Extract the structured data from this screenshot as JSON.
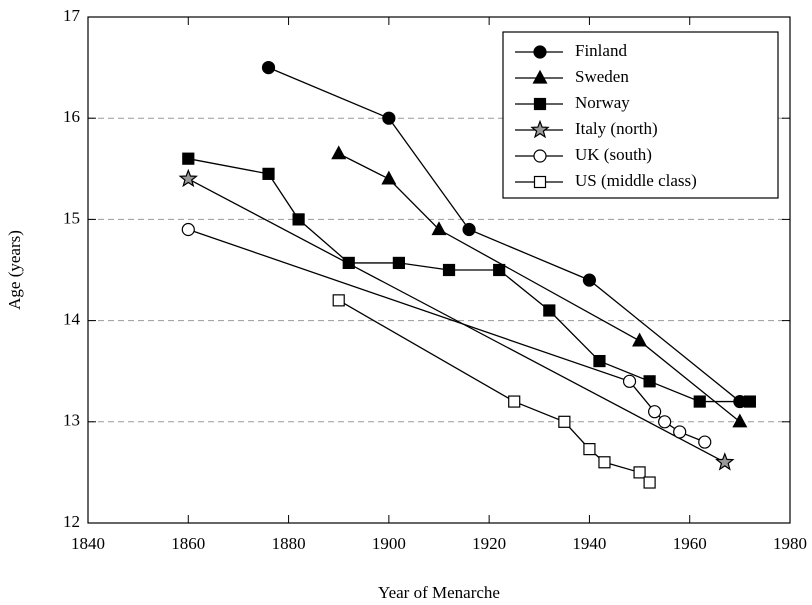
{
  "chart_data": {
    "type": "line",
    "xlabel": "Year of Menarche",
    "ylabel": "Age (years)",
    "xlim": [
      1840,
      1980
    ],
    "xticks": [
      1840,
      1860,
      1880,
      1900,
      1920,
      1940,
      1960,
      1980
    ],
    "ylim": [
      12,
      17
    ],
    "yticks": [
      12,
      13,
      14,
      15,
      16,
      17
    ],
    "grid": true,
    "legend": "upper right",
    "series": [
      {
        "name": "Finland",
        "marker": "circle",
        "color": "#000000",
        "x": [
          1876,
          1900,
          1916,
          1940,
          1970
        ],
        "values": [
          16.5,
          16.0,
          14.9,
          14.4,
          13.2
        ]
      },
      {
        "name": "Sweden",
        "marker": "triangle",
        "color": "#000000",
        "x": [
          1890,
          1900,
          1910,
          1950,
          1970
        ],
        "values": [
          15.65,
          15.4,
          14.9,
          13.8,
          13.0
        ]
      },
      {
        "name": "Norway",
        "marker": "square",
        "color": "#000000",
        "x": [
          1860,
          1876,
          1882,
          1892,
          1902,
          1912,
          1922,
          1932,
          1942,
          1952,
          1962,
          1972
        ],
        "values": [
          15.6,
          15.45,
          15.0,
          14.57,
          14.57,
          14.5,
          14.5,
          14.1,
          13.6,
          13.4,
          13.2,
          13.2
        ]
      },
      {
        "name": "Italy (north)",
        "marker": "star",
        "color": "#999999",
        "x": [
          1860,
          1967
        ],
        "values": [
          15.4,
          12.6
        ]
      },
      {
        "name": "UK (south)",
        "marker": "circle",
        "color": "#ffffff",
        "x": [
          1860,
          1948,
          1953,
          1955,
          1958,
          1963
        ],
        "values": [
          14.9,
          13.4,
          13.1,
          13.0,
          12.9,
          12.8
        ]
      },
      {
        "name": "US (middle class)",
        "marker": "square",
        "color": "#ffffff",
        "x": [
          1890,
          1925,
          1935,
          1940,
          1943,
          1950,
          1952
        ],
        "values": [
          14.2,
          13.2,
          13.0,
          12.73,
          12.6,
          12.5,
          12.4
        ]
      }
    ]
  }
}
